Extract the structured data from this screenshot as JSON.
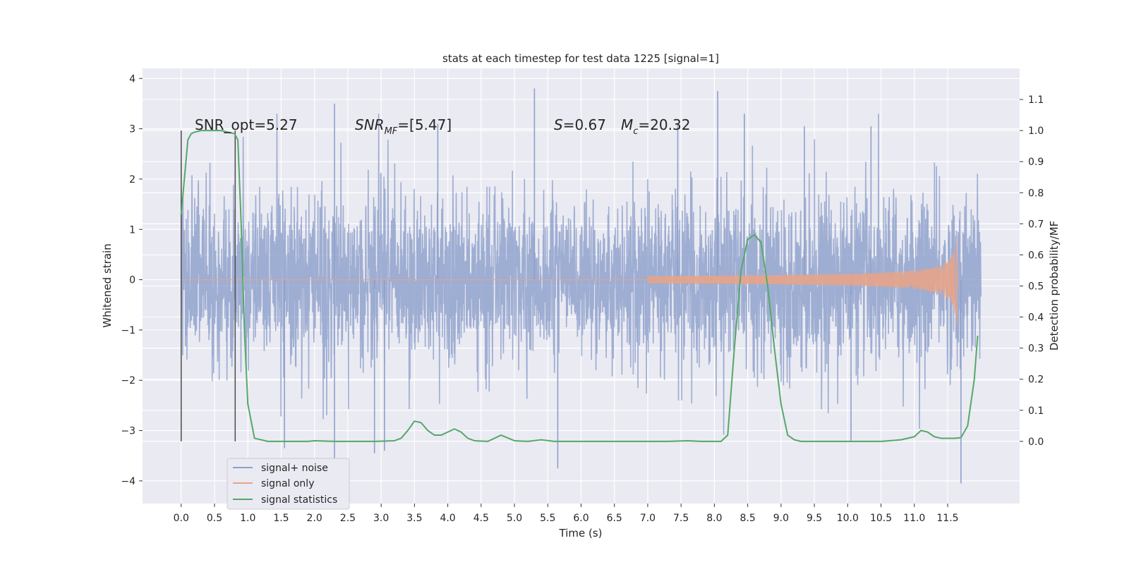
{
  "chart_data": {
    "type": "line",
    "title": "stats at each timestep for test data 1225 [signal=1]",
    "xlabel": "Time (s)",
    "ylabel": "Whitened strain",
    "ylabel_right": "Detection probability/MF",
    "xlim": [
      -0.58,
      12.58
    ],
    "ylim": [
      -4.45,
      4.2
    ],
    "ylim_right": [
      -0.2,
      1.2
    ],
    "x_ticks": [
      0.0,
      0.5,
      1.0,
      1.5,
      2.0,
      2.5,
      3.0,
      3.5,
      4.0,
      4.5,
      5.0,
      5.5,
      6.0,
      6.5,
      7.0,
      7.5,
      8.0,
      8.5,
      9.0,
      9.5,
      10.0,
      10.5,
      11.0,
      11.5
    ],
    "x_tick_labels": [
      "0.0",
      "0.5",
      "1.0",
      "1.5",
      "2.0",
      "2.5",
      "3.0",
      "3.5",
      "4.0",
      "4.5",
      "5.0",
      "5.5",
      "6.0",
      "6.5",
      "7.0",
      "7.5",
      "8.0",
      "8.5",
      "9.0",
      "9.5",
      "10.0",
      "10.5",
      "11.0",
      "11.5"
    ],
    "y_ticks": [
      -4,
      -3,
      -2,
      -1,
      0,
      1,
      2,
      3,
      4
    ],
    "y_tick_labels": [
      "−4",
      "−3",
      "−2",
      "−1",
      "0",
      "1",
      "2",
      "3",
      "4"
    ],
    "y_right_ticks": [
      0.0,
      0.1,
      0.2,
      0.3,
      0.4,
      0.5,
      0.6,
      0.7,
      0.8,
      0.9,
      1.0,
      1.1
    ],
    "y_right_tick_labels": [
      "0.0",
      "0.1",
      "0.2",
      "0.3",
      "0.4",
      "0.5",
      "0.6",
      "0.7",
      "0.8",
      "0.9",
      "1.0",
      "1.1"
    ],
    "grid": true,
    "legend_position": "lower-left",
    "annotations": {
      "snr_opt": "SNR_opt=5.27",
      "snr_mf_main": "SNR",
      "snr_mf_sub": "MF",
      "snr_mf_value": "=[5.47]",
      "s_symbol": "S",
      "s_value": "=0.67",
      "mc_main": "M",
      "mc_sub": "c",
      "mc_value": "=20.32"
    },
    "vertical_markers": [
      0.0,
      0.81
    ],
    "series": [
      {
        "name": "signal+ noise",
        "color": "#8da0cb",
        "axis": "left",
        "x_range": [
          0.0,
          12.0
        ],
        "noise_sigma": 1.0,
        "peaks": [
          {
            "x": 2.3,
            "y": 3.5
          },
          {
            "x": 5.3,
            "y": 3.8
          },
          {
            "x": 8.05,
            "y": 3.75
          },
          {
            "x": 8.45,
            "y": 3.3
          },
          {
            "x": 3.85,
            "y": 3.1
          },
          {
            "x": 7.45,
            "y": 3.1
          },
          {
            "x": 9.35,
            "y": 3.05
          },
          {
            "x": 10.35,
            "y": 3.05
          },
          {
            "x": 11.7,
            "y": -4.05
          },
          {
            "x": 5.65,
            "y": -3.75
          },
          {
            "x": 2.3,
            "y": -3.55
          },
          {
            "x": 2.9,
            "y": -3.45
          },
          {
            "x": 3.05,
            "y": -3.4
          },
          {
            "x": 10.05,
            "y": -3.2
          },
          {
            "x": 1.55,
            "y": -3.35
          }
        ]
      },
      {
        "name": "signal only",
        "color": "#e5a48a",
        "axis": "left",
        "x_range": [
          0.0,
          11.7
        ],
        "chirp_start": 7.0,
        "merger_time": 11.65,
        "peak_amplitude": 1.05
      },
      {
        "name": "signal statistics",
        "color": "#55a868",
        "axis": "right",
        "x": [
          0.0,
          0.05,
          0.1,
          0.15,
          0.2,
          0.3,
          0.4,
          0.5,
          0.6,
          0.7,
          0.8,
          0.85,
          0.9,
          0.95,
          1.0,
          1.1,
          1.3,
          1.6,
          1.9,
          2.0,
          2.3,
          2.6,
          2.9,
          3.2,
          3.3,
          3.4,
          3.5,
          3.6,
          3.7,
          3.8,
          3.9,
          4.0,
          4.1,
          4.2,
          4.3,
          4.4,
          4.6,
          4.8,
          5.0,
          5.2,
          5.4,
          5.6,
          6.0,
          6.5,
          7.0,
          7.3,
          7.6,
          7.8,
          8.0,
          8.1,
          8.2,
          8.3,
          8.4,
          8.5,
          8.6,
          8.7,
          8.8,
          8.9,
          9.0,
          9.1,
          9.2,
          9.3,
          9.5,
          10.0,
          10.5,
          10.8,
          11.0,
          11.1,
          11.2,
          11.3,
          11.4,
          11.5,
          11.6,
          11.7,
          11.8,
          11.9,
          11.95
        ],
        "values": [
          0.73,
          0.85,
          0.97,
          0.99,
          0.995,
          1.0,
          1.0,
          1.0,
          1.0,
          0.995,
          0.99,
          0.97,
          0.7,
          0.35,
          0.12,
          0.01,
          0.0,
          0.0,
          0.0,
          0.002,
          0.0,
          0.0,
          0.0,
          0.002,
          0.01,
          0.035,
          0.065,
          0.06,
          0.035,
          0.02,
          0.02,
          0.03,
          0.04,
          0.03,
          0.01,
          0.002,
          0.0,
          0.02,
          0.002,
          0.0,
          0.005,
          0.0,
          0.0,
          0.0,
          0.0,
          0.0,
          0.002,
          0.0,
          0.0,
          0.0,
          0.02,
          0.3,
          0.55,
          0.65,
          0.665,
          0.64,
          0.5,
          0.3,
          0.12,
          0.02,
          0.005,
          0.0,
          0.0,
          0.0,
          0.0,
          0.005,
          0.015,
          0.035,
          0.03,
          0.015,
          0.01,
          0.01,
          0.01,
          0.012,
          0.05,
          0.2,
          0.34
        ]
      }
    ]
  }
}
